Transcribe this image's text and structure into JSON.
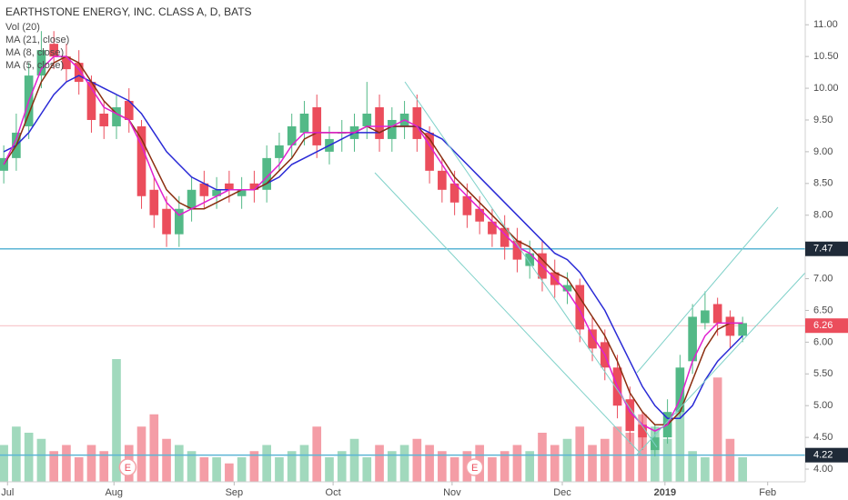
{
  "chart_data": {
    "type": "candlestick",
    "title": "EARTHSTONE ENERGY, INC. CLASS A, D, BATS",
    "up_color": "#53b987",
    "down_color": "#eb4d5c",
    "ohlc": {
      "open": [
        8.7,
        8.9,
        9.4,
        10.2,
        10.7,
        10.5,
        10.4,
        10.1,
        9.6,
        9.4,
        9.8,
        9.4,
        8.4,
        8.1,
        7.7,
        8.1,
        8.5,
        8.3,
        8.5,
        8.3,
        8.5,
        8.4,
        8.9,
        9.1,
        9.3,
        9.7,
        9.0,
        9.3,
        9.2,
        9.4,
        9.7,
        9.2,
        9.4,
        9.7,
        9.3,
        8.7,
        8.5,
        8.3,
        8.1,
        7.9,
        7.8,
        7.6,
        7.2,
        7.4,
        7.1,
        6.8,
        6.9,
        6.2,
        6.0,
        5.6,
        5.1,
        4.7,
        4.3,
        4.5,
        4.9,
        5.7,
        6.3,
        6.6,
        6.4,
        6.1
      ],
      "high": [
        9.1,
        9.6,
        10.4,
        10.9,
        10.9,
        10.7,
        10.6,
        10.2,
        9.8,
        9.9,
        10.0,
        9.5,
        8.6,
        8.3,
        8.3,
        8.6,
        8.7,
        8.6,
        8.7,
        8.6,
        8.7,
        9.1,
        9.3,
        9.6,
        9.8,
        9.9,
        9.4,
        9.5,
        9.6,
        10.1,
        9.9,
        9.7,
        9.8,
        9.9,
        9.4,
        8.9,
        8.7,
        8.5,
        8.3,
        8.1,
        8.0,
        7.8,
        7.6,
        7.6,
        7.3,
        7.1,
        7.0,
        6.4,
        6.2,
        5.8,
        5.3,
        4.9,
        4.7,
        5.1,
        5.8,
        6.6,
        6.8,
        6.7,
        6.5,
        6.4
      ],
      "low": [
        8.5,
        8.7,
        9.2,
        10.0,
        10.3,
        10.1,
        9.9,
        9.3,
        9.2,
        9.2,
        9.3,
        8.1,
        7.8,
        7.5,
        7.5,
        7.9,
        8.1,
        8.1,
        8.2,
        8.1,
        8.2,
        8.2,
        8.7,
        8.9,
        9.1,
        8.9,
        8.8,
        9.0,
        9.0,
        9.2,
        9.0,
        9.0,
        9.2,
        9.0,
        8.5,
        8.2,
        8.0,
        7.8,
        7.7,
        7.5,
        7.3,
        7.1,
        7.0,
        6.8,
        6.7,
        6.6,
        6.0,
        5.7,
        5.4,
        4.8,
        4.4,
        4.3,
        4.2,
        4.4,
        4.8,
        5.5,
        6.2,
        6.1,
        5.9,
        6.0
      ],
      "close": [
        8.9,
        9.3,
        10.2,
        10.6,
        10.5,
        10.3,
        10.1,
        9.5,
        9.4,
        9.7,
        9.5,
        8.3,
        8.0,
        7.7,
        8.1,
        8.4,
        8.3,
        8.4,
        8.4,
        8.4,
        8.4,
        8.9,
        9.1,
        9.4,
        9.6,
        9.1,
        9.2,
        9.3,
        9.4,
        9.6,
        9.2,
        9.5,
        9.6,
        9.2,
        8.7,
        8.4,
        8.2,
        8.0,
        7.9,
        7.7,
        7.5,
        7.3,
        7.4,
        7.0,
        6.9,
        6.9,
        6.2,
        5.9,
        5.6,
        5.0,
        4.6,
        4.5,
        4.5,
        4.9,
        5.6,
        6.4,
        6.5,
        6.3,
        6.1,
        6.3
      ]
    },
    "volume": {
      "name": "Vol (20)",
      "vlim": [
        0,
        100
      ],
      "values": [
        30,
        45,
        40,
        35,
        25,
        30,
        20,
        30,
        25,
        100,
        30,
        45,
        55,
        35,
        30,
        25,
        20,
        20,
        15,
        20,
        25,
        30,
        20,
        25,
        30,
        45,
        20,
        25,
        35,
        20,
        30,
        25,
        30,
        35,
        30,
        25,
        20,
        25,
        30,
        20,
        25,
        30,
        25,
        40,
        30,
        35,
        45,
        30,
        35,
        45,
        40,
        55,
        45,
        35,
        60,
        25,
        20,
        85,
        35,
        20
      ]
    },
    "series": [
      {
        "name": "MA (21, close)",
        "color": "#2a2ad6",
        "values": [
          9.0,
          9.1,
          9.3,
          9.6,
          9.9,
          10.1,
          10.2,
          10.1,
          10.0,
          9.9,
          9.8,
          9.6,
          9.3,
          9.0,
          8.8,
          8.6,
          8.5,
          8.4,
          8.4,
          8.4,
          8.4,
          8.5,
          8.6,
          8.8,
          8.9,
          9.0,
          9.1,
          9.2,
          9.3,
          9.3,
          9.3,
          9.4,
          9.4,
          9.4,
          9.3,
          9.2,
          9.0,
          8.8,
          8.6,
          8.4,
          8.2,
          8.0,
          7.8,
          7.6,
          7.4,
          7.3,
          7.1,
          6.8,
          6.5,
          6.1,
          5.7,
          5.3,
          5.0,
          4.8,
          4.8,
          5.0,
          5.4,
          5.7,
          5.9,
          6.1
        ]
      },
      {
        "name": "MA (8, close)",
        "color": "#8b2e10",
        "values": [
          8.8,
          9.1,
          9.6,
          10.1,
          10.4,
          10.5,
          10.4,
          10.1,
          9.8,
          9.6,
          9.5,
          9.2,
          8.8,
          8.4,
          8.2,
          8.1,
          8.1,
          8.2,
          8.3,
          8.4,
          8.4,
          8.5,
          8.7,
          8.9,
          9.2,
          9.3,
          9.3,
          9.3,
          9.3,
          9.4,
          9.3,
          9.4,
          9.4,
          9.4,
          9.2,
          8.9,
          8.6,
          8.4,
          8.2,
          8.0,
          7.8,
          7.6,
          7.5,
          7.3,
          7.1,
          7.0,
          6.7,
          6.4,
          6.1,
          5.7,
          5.2,
          4.9,
          4.7,
          4.7,
          4.9,
          5.4,
          5.9,
          6.2,
          6.3,
          6.3
        ]
      },
      {
        "name": "MA (5, close)",
        "color": "#e020d0",
        "values": [
          8.8,
          9.2,
          9.8,
          10.3,
          10.5,
          10.5,
          10.3,
          10.0,
          9.7,
          9.6,
          9.5,
          9.1,
          8.6,
          8.2,
          8.0,
          8.1,
          8.2,
          8.3,
          8.4,
          8.4,
          8.4,
          8.6,
          8.8,
          9.1,
          9.3,
          9.3,
          9.3,
          9.3,
          9.3,
          9.4,
          9.4,
          9.4,
          9.5,
          9.4,
          9.1,
          8.8,
          8.5,
          8.3,
          8.1,
          7.9,
          7.7,
          7.5,
          7.4,
          7.2,
          7.0,
          6.8,
          6.5,
          6.1,
          5.8,
          5.3,
          4.9,
          4.7,
          4.6,
          4.7,
          5.1,
          5.7,
          6.1,
          6.3,
          6.3,
          6.3
        ]
      }
    ],
    "xlim": [
      -0.3,
      64
    ],
    "xticks": [
      {
        "value": 0.3,
        "label": "Jul"
      },
      {
        "value": 8.8,
        "label": "Aug"
      },
      {
        "value": 18.4,
        "label": "Sep"
      },
      {
        "value": 26.3,
        "label": "Oct"
      },
      {
        "value": 35.8,
        "label": "Nov"
      },
      {
        "value": 44.6,
        "label": "Dec"
      },
      {
        "value": 52.8,
        "label": "2019"
      },
      {
        "value": 61,
        "label": "Feb"
      }
    ],
    "ylim": [
      3.8,
      11.39
    ],
    "yticks": [
      {
        "value": 4,
        "label": "4.00"
      },
      {
        "value": 4.5,
        "label": "4.50"
      },
      {
        "value": 5,
        "label": "5.00"
      },
      {
        "value": 5.5,
        "label": "5.50"
      },
      {
        "value": 6,
        "label": "6.00"
      },
      {
        "value": 6.5,
        "label": "6.50"
      },
      {
        "value": 7,
        "label": "7.00"
      },
      {
        "value": 7.5,
        "label": "7.50"
      },
      {
        "value": 8,
        "label": "8.00"
      },
      {
        "value": 8.5,
        "label": "8.50"
      },
      {
        "value": 9,
        "label": "9.00"
      },
      {
        "value": 9.5,
        "label": "9.50"
      },
      {
        "value": 10,
        "label": "10.00"
      },
      {
        "value": 10.5,
        "label": "10.50"
      },
      {
        "value": 11,
        "label": "11.00"
      }
    ],
    "hlines": [
      {
        "value": 7.47,
        "color": "#5bb5d5"
      },
      {
        "value": 4.22,
        "color": "#5bb5d5"
      }
    ],
    "last_price": {
      "value": 6.26,
      "color": "#eb4d5c"
    },
    "events": [
      {
        "x": 9.9,
        "label": "E"
      },
      {
        "x": 37.6,
        "label": "E"
      }
    ]
  }
}
